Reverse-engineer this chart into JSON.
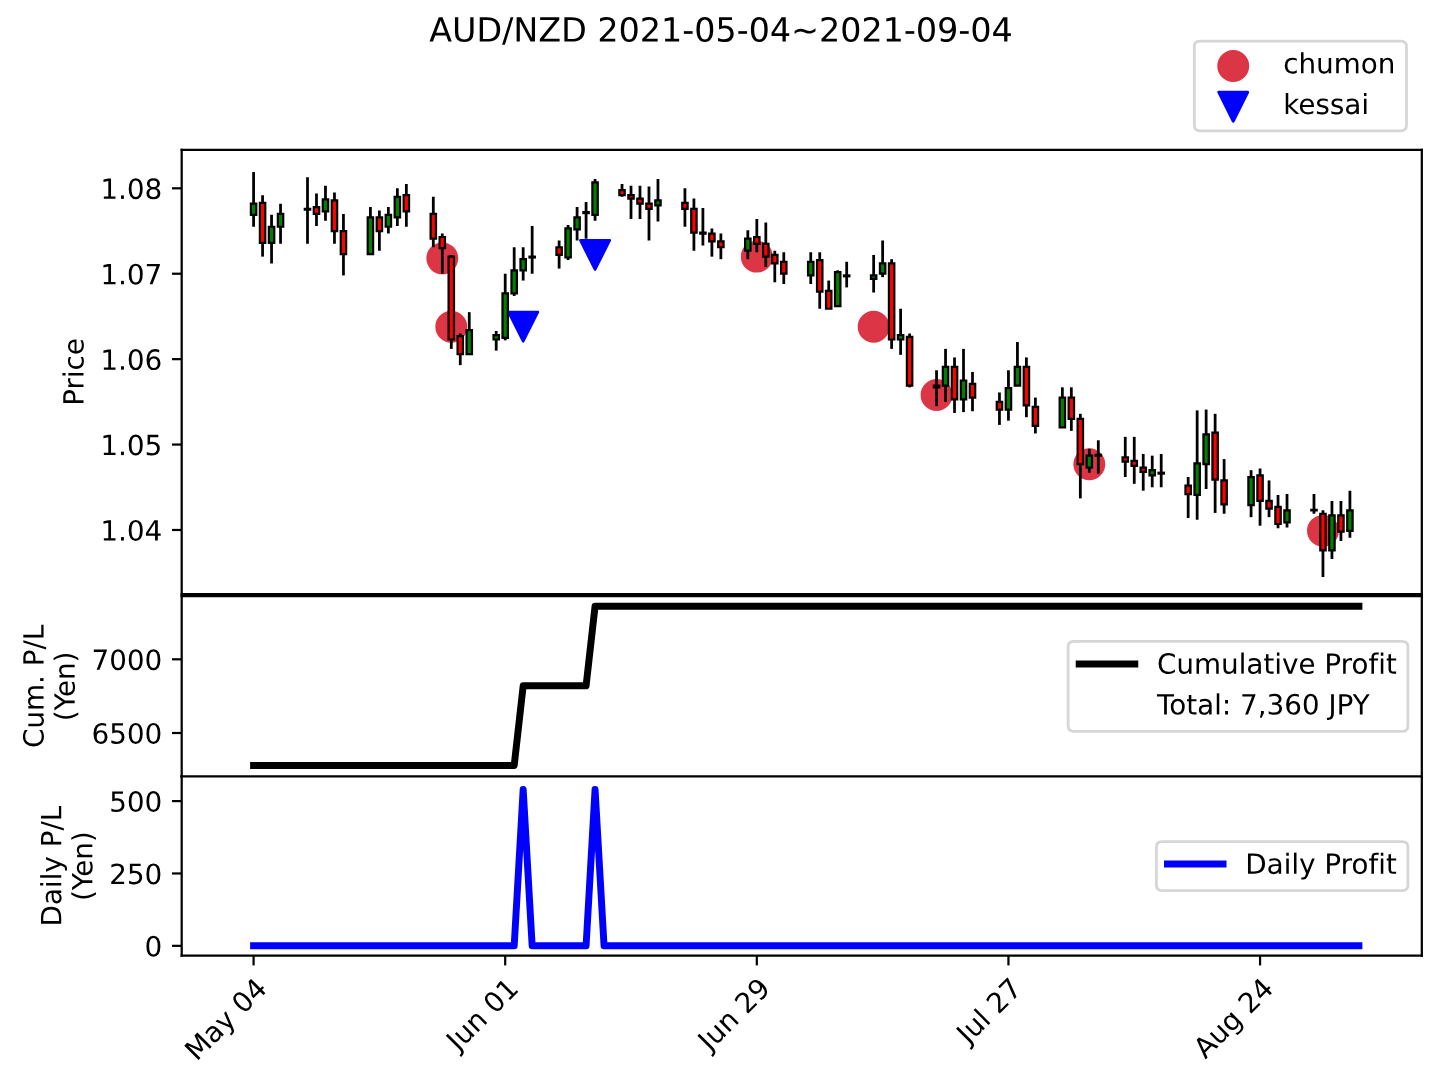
{
  "chart_data": [
    {
      "type": "candlestick",
      "title": "AUD/NZD 2021-05-04~2021-09-04",
      "ylabel": "Price",
      "x": [
        "2021-05-04",
        "2021-05-05",
        "2021-05-06",
        "2021-05-07",
        "2021-05-10",
        "2021-05-11",
        "2021-05-12",
        "2021-05-13",
        "2021-05-14",
        "2021-05-17",
        "2021-05-18",
        "2021-05-19",
        "2021-05-20",
        "2021-05-21",
        "2021-05-24",
        "2021-05-25",
        "2021-05-26",
        "2021-05-27",
        "2021-05-28",
        "2021-05-31",
        "2021-06-01",
        "2021-06-02",
        "2021-06-03",
        "2021-06-04",
        "2021-06-07",
        "2021-06-08",
        "2021-06-09",
        "2021-06-10",
        "2021-06-11",
        "2021-06-14",
        "2021-06-15",
        "2021-06-16",
        "2021-06-17",
        "2021-06-18",
        "2021-06-21",
        "2021-06-22",
        "2021-06-23",
        "2021-06-24",
        "2021-06-25",
        "2021-06-28",
        "2021-06-29",
        "2021-06-30",
        "2021-07-01",
        "2021-07-02",
        "2021-07-05",
        "2021-07-06",
        "2021-07-07",
        "2021-07-08",
        "2021-07-09",
        "2021-07-12",
        "2021-07-13",
        "2021-07-14",
        "2021-07-15",
        "2021-07-16",
        "2021-07-19",
        "2021-07-20",
        "2021-07-21",
        "2021-07-22",
        "2021-07-23",
        "2021-07-26",
        "2021-07-27",
        "2021-07-28",
        "2021-07-29",
        "2021-07-30",
        "2021-08-02",
        "2021-08-03",
        "2021-08-04",
        "2021-08-05",
        "2021-08-06",
        "2021-08-09",
        "2021-08-10",
        "2021-08-11",
        "2021-08-12",
        "2021-08-13",
        "2021-08-16",
        "2021-08-17",
        "2021-08-18",
        "2021-08-19",
        "2021-08-20",
        "2021-08-23",
        "2021-08-24",
        "2021-08-25",
        "2021-08-26",
        "2021-08-27",
        "2021-08-30",
        "2021-08-31",
        "2021-09-01",
        "2021-09-02",
        "2021-09-03"
      ],
      "ohlc": [
        [
          1.0769,
          1.0819,
          1.0755,
          1.0782
        ],
        [
          1.0783,
          1.0792,
          1.072,
          1.0736
        ],
        [
          1.0736,
          1.0769,
          1.0712,
          1.0755
        ],
        [
          1.0755,
          1.0782,
          1.0735,
          1.077
        ],
        [
          1.0775,
          1.0813,
          1.0735,
          1.0776
        ],
        [
          1.0778,
          1.0794,
          1.0756,
          1.077
        ],
        [
          1.0773,
          1.0803,
          1.0762,
          1.0787
        ],
        [
          1.0786,
          1.0795,
          1.0735,
          1.075
        ],
        [
          1.075,
          1.077,
          1.0698,
          1.0723
        ],
        [
          1.0723,
          1.0778,
          1.0722,
          1.0766
        ],
        [
          1.0766,
          1.0774,
          1.0727,
          1.075
        ],
        [
          1.0755,
          1.0778,
          1.0747,
          1.0769
        ],
        [
          1.0766,
          1.08,
          1.0756,
          1.079
        ],
        [
          1.0792,
          1.0805,
          1.0755,
          1.0773
        ],
        [
          1.077,
          1.079,
          1.0731,
          1.0741
        ],
        [
          1.0743,
          1.0747,
          1.07,
          1.073
        ],
        [
          1.072,
          1.0722,
          1.0612,
          1.0623
        ],
        [
          1.0627,
          1.063,
          1.0593,
          1.0606
        ],
        [
          1.0606,
          1.0655,
          1.0605,
          1.0634
        ],
        [
          1.0623,
          1.0633,
          1.061,
          1.0628
        ],
        [
          1.0625,
          1.07,
          1.0622,
          1.0677
        ],
        [
          1.0677,
          1.0731,
          1.0674,
          1.0704
        ],
        [
          1.0704,
          1.0731,
          1.0692,
          1.0717
        ],
        [
          1.0719,
          1.0756,
          1.07,
          1.072
        ],
        [
          1.0731,
          1.0739,
          1.0706,
          1.0722
        ],
        [
          1.0719,
          1.0757,
          1.0716,
          1.0753
        ],
        [
          1.0752,
          1.0778,
          1.0739,
          1.0766
        ],
        [
          1.0771,
          1.0784,
          1.0741,
          1.0772
        ],
        [
          1.0769,
          1.0811,
          1.0762,
          1.0807
        ],
        [
          1.0798,
          1.0805,
          1.079,
          1.0792
        ],
        [
          1.0792,
          1.0803,
          1.0764,
          1.0788
        ],
        [
          1.0788,
          1.0803,
          1.0764,
          1.0782
        ],
        [
          1.0782,
          1.0802,
          1.0739,
          1.0776
        ],
        [
          1.078,
          1.0811,
          1.0761,
          1.0786
        ],
        [
          1.0783,
          1.08,
          1.0755,
          1.0776
        ],
        [
          1.0776,
          1.0788,
          1.0727,
          1.0748
        ],
        [
          1.0748,
          1.0777,
          1.0733,
          1.0747
        ],
        [
          1.0747,
          1.0753,
          1.072,
          1.0738
        ],
        [
          1.0738,
          1.0747,
          1.0717,
          1.0731
        ],
        [
          1.0727,
          1.0751,
          1.0717,
          1.0741
        ],
        [
          1.0743,
          1.0764,
          1.0725,
          1.0735
        ],
        [
          1.0735,
          1.076,
          1.0708,
          1.072
        ],
        [
          1.0722,
          1.0727,
          1.069,
          1.0712
        ],
        [
          1.0714,
          1.0725,
          1.0688,
          1.07
        ],
        [
          1.0698,
          1.0725,
          1.0688,
          1.0714
        ],
        [
          1.0716,
          1.0725,
          1.0659,
          1.0679
        ],
        [
          1.068,
          1.0692,
          1.0659,
          1.0659
        ],
        [
          1.0662,
          1.0704,
          1.0661,
          1.0702
        ],
        [
          1.0698,
          1.0714,
          1.0684,
          1.0697
        ],
        [
          1.0694,
          1.0722,
          1.0678,
          1.0698
        ],
        [
          1.07,
          1.0739,
          1.0696,
          1.0712
        ],
        [
          1.0712,
          1.0717,
          1.0612,
          1.0623
        ],
        [
          1.0623,
          1.0659,
          1.0605,
          1.0628
        ],
        [
          1.0626,
          1.063,
          1.0567,
          1.0569
        ],
        [
          1.0569,
          1.0587,
          1.0545,
          1.0567
        ],
        [
          1.0569,
          1.0612,
          1.055,
          1.0591
        ],
        [
          1.0591,
          1.0602,
          1.0537,
          1.0553
        ],
        [
          1.0553,
          1.0612,
          1.0538,
          1.0575
        ],
        [
          1.0571,
          1.0585,
          1.0539,
          1.0555
        ],
        [
          1.055,
          1.0561,
          1.0523,
          1.0541
        ],
        [
          1.0541,
          1.0587,
          1.0528,
          1.0566
        ],
        [
          1.0569,
          1.062,
          1.0569,
          1.0591
        ],
        [
          1.0591,
          1.0602,
          1.0532,
          1.0546
        ],
        [
          1.0544,
          1.0555,
          1.0513,
          1.0522
        ],
        [
          1.052,
          1.0567,
          1.052,
          1.0555
        ],
        [
          1.0555,
          1.0567,
          1.0516,
          1.053
        ],
        [
          1.053,
          1.0536,
          1.0437,
          1.0477
        ],
        [
          1.0473,
          1.0495,
          1.0467,
          1.0487
        ],
        [
          1.0487,
          1.0505,
          1.0466,
          1.0488
        ],
        [
          1.0485,
          1.0509,
          1.0462,
          1.048
        ],
        [
          1.0481,
          1.0509,
          1.0454,
          1.0475
        ],
        [
          1.0473,
          1.0489,
          1.0446,
          1.0468
        ],
        [
          1.0464,
          1.0487,
          1.045,
          1.047
        ],
        [
          1.0467,
          1.0489,
          1.045,
          1.0466
        ],
        [
          1.0452,
          1.0462,
          1.0414,
          1.0442
        ],
        [
          1.0441,
          1.054,
          1.0412,
          1.0478
        ],
        [
          1.0477,
          1.0541,
          1.0448,
          1.0512
        ],
        [
          1.0514,
          1.0536,
          1.042,
          1.0459
        ],
        [
          1.0458,
          1.0483,
          1.0419,
          1.043
        ],
        [
          1.0429,
          1.047,
          1.0415,
          1.0462
        ],
        [
          1.0464,
          1.0472,
          1.0405,
          1.0434
        ],
        [
          1.0434,
          1.0458,
          1.0415,
          1.0425
        ],
        [
          1.0427,
          1.0441,
          1.0402,
          1.0407
        ],
        [
          1.0409,
          1.0442,
          1.0403,
          1.0423
        ],
        [
          1.0423,
          1.0442,
          1.0419,
          1.0423
        ],
        [
          1.0419,
          1.0423,
          1.0345,
          1.0376
        ],
        [
          1.0376,
          1.0434,
          1.0366,
          1.0417
        ],
        [
          1.0417,
          1.0434,
          1.0387,
          1.0398
        ],
        [
          1.0399,
          1.0446,
          1.0391,
          1.0423
        ]
      ],
      "series": [
        {
          "name": "chumon",
          "type": "scatter",
          "marker": "circle",
          "color": "#dc3545",
          "x": [
            "2021-05-25",
            "2021-05-26",
            "2021-06-29",
            "2021-07-12",
            "2021-07-19",
            "2021-08-05",
            "2021-08-31"
          ],
          "values": [
            1.0718,
            1.0638,
            1.072,
            1.0638,
            1.0558,
            1.0477,
            1.0399
          ]
        },
        {
          "name": "kessai",
          "type": "scatter",
          "marker": "triangle",
          "color": "#0000ff",
          "x": [
            "2021-06-03",
            "2021-06-11"
          ],
          "values": [
            1.0638,
            1.0722
          ]
        }
      ],
      "xlim": [
        "2021-04-26",
        "2021-09-11"
      ],
      "ylim": [
        1.0325,
        1.0845
      ],
      "yticks": [
        1.04,
        1.05,
        1.06,
        1.07,
        1.08
      ],
      "tick_labels": "y",
      "legend": "top right"
    },
    {
      "type": "line",
      "ylabel": "Cum. P/L\n(Yen)",
      "annotations": [
        "Total: 7,360 JPY"
      ],
      "series": [
        {
          "name": "Cumulative Profit",
          "color": "#000000",
          "x": [
            "2021-05-04",
            "2021-06-02",
            "2021-06-03",
            "2021-06-10",
            "2021-06-11",
            "2021-09-04"
          ],
          "values": [
            6280,
            6280,
            6820,
            6820,
            7360,
            7360
          ]
        }
      ],
      "xlim": [
        "2021-04-26",
        "2021-09-11"
      ],
      "ylim": [
        6205,
        7428
      ],
      "yticks": [
        6500,
        7000
      ],
      "tick_labels": "y",
      "legend": "right"
    },
    {
      "type": "line",
      "ylabel": "Daily P/L\n(Yen)",
      "series": [
        {
          "name": "Daily Profit",
          "color": "#0000ff",
          "x": [
            "2021-05-04",
            "2021-06-02",
            "2021-06-03",
            "2021-06-04",
            "2021-06-10",
            "2021-06-11",
            "2021-06-12",
            "2021-09-04"
          ],
          "values": [
            0,
            0,
            540,
            0,
            0,
            540,
            0,
            0
          ]
        }
      ],
      "xlim": [
        "2021-04-26",
        "2021-09-11"
      ],
      "xticks": [
        {
          "value": "2021-05-04",
          "label": "May 04"
        },
        {
          "value": "2021-06-01",
          "label": "Jun 01"
        },
        {
          "value": "2021-06-29",
          "label": "Jun 29"
        },
        {
          "value": "2021-07-27",
          "label": "Jul 27"
        },
        {
          "value": "2021-08-24",
          "label": "Aug 24"
        }
      ],
      "ylim": [
        -34,
        585
      ],
      "yticks": [
        0,
        250,
        500
      ],
      "legend": "right"
    }
  ]
}
